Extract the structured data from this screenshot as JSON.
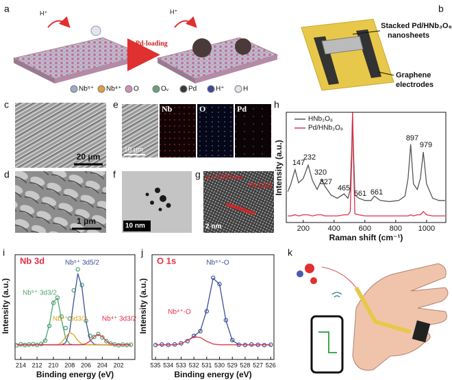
{
  "panels": {
    "a": {
      "label": "a",
      "hplus": [
        "H⁺",
        "H⁺"
      ],
      "arrow": "Pd-loading",
      "legend": [
        "Nb⁵⁺",
        "Nb⁴⁺",
        "O",
        "Oᵥ",
        "Pd",
        "H⁺",
        "H"
      ]
    },
    "b": {
      "label": "b",
      "sheets": [
        "Stacked Pd/HNb₃O₈",
        "nanosheets"
      ],
      "electrodes": [
        "Graphene",
        "electrodes"
      ]
    },
    "c": {
      "label": "c",
      "scale": "20 μm"
    },
    "d": {
      "label": "d",
      "scale": "1 μm"
    },
    "e": {
      "label": "e",
      "maps": [
        "Nb",
        "O",
        "Pd"
      ],
      "scale": "10 μm"
    },
    "f": {
      "label": "f",
      "scale": "10 nm"
    },
    "g": {
      "label": "g",
      "spacing": "d = 0.233 nm",
      "plane": "Pd (111)",
      "scale": "2 nm"
    },
    "h": {
      "label": "h"
    },
    "i": {
      "label": "i"
    },
    "j": {
      "label": "j"
    },
    "k": {
      "label": "k"
    }
  },
  "chart_data": [
    {
      "type": "line",
      "xlabel": "Raman shift (cm⁻¹)",
      "ylabel": "Intensity (a.u.)",
      "legend": "upper left",
      "x": [
        100,
        120,
        147,
        170,
        200,
        232,
        260,
        290,
        320,
        340,
        380,
        420,
        465,
        490,
        505,
        515,
        520,
        525,
        535,
        561,
        600,
        640,
        661,
        700,
        760,
        820,
        860,
        880,
        897,
        915,
        940,
        960,
        979,
        1000,
        1040,
        1080,
        1120
      ],
      "series": [
        {
          "name": "HNb₃O₈",
          "color": "#555555",
          "values": [
            28,
            35,
            48,
            36,
            40,
            52,
            38,
            30,
            39,
            33,
            25,
            22,
            26,
            22,
            30,
            70,
            100,
            70,
            25,
            22,
            20,
            20,
            24,
            20,
            19,
            20,
            24,
            40,
            71,
            35,
            30,
            40,
            64,
            35,
            22,
            20,
            20
          ]
        },
        {
          "name": "Pd/HNb₃O₈",
          "color": "#e0304a",
          "values": [
            6,
            6,
            7,
            6,
            7,
            7,
            6,
            7,
            7,
            6,
            6,
            6,
            7,
            7,
            10,
            60,
            100,
            60,
            8,
            7,
            6,
            6,
            6,
            6,
            6,
            6,
            6,
            6,
            7,
            6,
            7,
            7,
            10,
            7,
            6,
            6,
            6
          ]
        }
      ],
      "annotations": [
        "147",
        "232",
        "320",
        "327",
        "465",
        "561",
        "661",
        "897",
        "979"
      ],
      "xlim": [
        90,
        1125
      ],
      "xticks": [
        200,
        400,
        600,
        800,
        1000
      ],
      "ylim": [
        0,
        100
      ]
    },
    {
      "type": "line",
      "title": "Nb 3d",
      "title_color": "#e0304a",
      "xlabel": "Binding energy (eV)",
      "ylabel": "Intensity (a.u.)",
      "x": [
        214.5,
        214,
        213.5,
        213,
        212.5,
        212,
        211.5,
        211,
        210.5,
        210,
        209.5,
        209,
        208.5,
        208,
        207.5,
        207,
        206.5,
        206,
        205.5,
        205,
        204.5,
        204,
        203.5,
        203,
        202.5,
        202,
        201.5,
        201,
        200.5
      ],
      "series": [
        {
          "mode": "markers",
          "color": "#4a9a6a",
          "values": [
            13.5,
            14.5,
            13.8,
            14.3,
            14.6,
            13.9,
            14.8,
            18,
            32,
            54,
            59,
            41,
            30,
            39,
            66,
            86,
            71,
            37,
            22.5,
            21.5,
            24.3,
            21,
            17.5,
            15.2,
            14.4,
            13.6,
            14.2,
            13.8,
            14.1
          ]
        },
        {
          "color": "#4aa870",
          "values": [
            14,
            14,
            14,
            14,
            14,
            14,
            14.2,
            18.5,
            33,
            55,
            58.5,
            38,
            20.3,
            14.8,
            14,
            14,
            14,
            14,
            14,
            14,
            14,
            14,
            14,
            14,
            14,
            14,
            14,
            14,
            14
          ]
        },
        {
          "color": "#3b4f9a",
          "values": [
            14,
            14,
            14,
            14,
            14,
            14,
            14,
            14,
            14,
            14,
            14,
            14,
            15.9,
            26.8,
            56,
            82,
            69,
            36.4,
            18.5,
            14.5,
            14,
            14,
            14,
            14,
            14,
            14,
            14,
            14,
            14
          ]
        },
        {
          "color": "#e0a020",
          "values": [
            14,
            14,
            14,
            14,
            14,
            14,
            14,
            14,
            14,
            14,
            14,
            16.2,
            21.3,
            25.8,
            23.6,
            17.9,
            14.8,
            14,
            14,
            14,
            14,
            14,
            14,
            14,
            14,
            14,
            14,
            14,
            14
          ]
        },
        {
          "color": "#e0304a",
          "values": [
            14,
            14,
            14,
            14,
            14,
            14,
            14,
            14,
            14,
            14,
            14,
            14,
            14,
            14,
            14,
            14,
            14.2,
            15,
            17.6,
            21.7,
            24,
            21.7,
            17.6,
            15,
            14.2,
            14,
            14,
            14,
            14
          ]
        }
      ],
      "annotations": [
        {
          "text": "Nb⁵⁺ 3d5/2",
          "color": "#3b4f9a"
        },
        {
          "text": "Nb⁵⁺ 3d3/2",
          "color": "#4aa870"
        },
        {
          "text": "Nb⁴⁺ 3d3/2",
          "color": "#e0a020"
        },
        {
          "text": "Nb⁴⁺ 3d3/2",
          "color": "#e0304a"
        }
      ],
      "xlim": [
        214.7,
        200
      ],
      "xticks": [
        214,
        212,
        210,
        208,
        206,
        204,
        202
      ],
      "ylim": [
        0,
        100
      ]
    },
    {
      "type": "line",
      "title": "O 1s",
      "title_color": "#e0304a",
      "xlabel": "Binding energy (eV)",
      "ylabel": "Intensity (a.u.)",
      "x": [
        535,
        534.5,
        534,
        533.5,
        533,
        532.5,
        532,
        531.5,
        531,
        530.5,
        530,
        529.5,
        529,
        528.5,
        528,
        527.5,
        527,
        526.5,
        526
      ],
      "series": [
        {
          "mode": "markers",
          "color": "#3b4f9a",
          "values": [
            13.8,
            14.3,
            13.9,
            14.4,
            15.4,
            17.5,
            22.5,
            27,
            46,
            78,
            72,
            37.5,
            18.5,
            14.1,
            13.8,
            14.3,
            14,
            13.7,
            14.1
          ]
        },
        {
          "color": "#3b4f9a",
          "values": [
            14,
            14,
            14,
            14.1,
            15.1,
            18,
            22.2,
            27.2,
            47.1,
            77.5,
            71.8,
            37.2,
            18.1,
            14.3,
            14,
            14,
            14,
            14,
            14
          ]
        },
        {
          "color": "#e0304a",
          "values": [
            14,
            14,
            14,
            14.1,
            15.1,
            18,
            21.6,
            21,
            17.3,
            14.8,
            14,
            14,
            14,
            14,
            14,
            14,
            14,
            14,
            14
          ]
        }
      ],
      "annotations": [
        {
          "text": "Nb⁵⁺-O",
          "color": "#3b4f9a"
        },
        {
          "text": "Nb⁴⁺-O",
          "color": "#e0304a"
        }
      ],
      "xlim": [
        535.27,
        525.75
      ],
      "xticks": [
        535,
        534,
        533,
        532,
        531,
        530,
        529,
        528,
        527,
        526
      ],
      "ylim": [
        0,
        100
      ]
    }
  ]
}
